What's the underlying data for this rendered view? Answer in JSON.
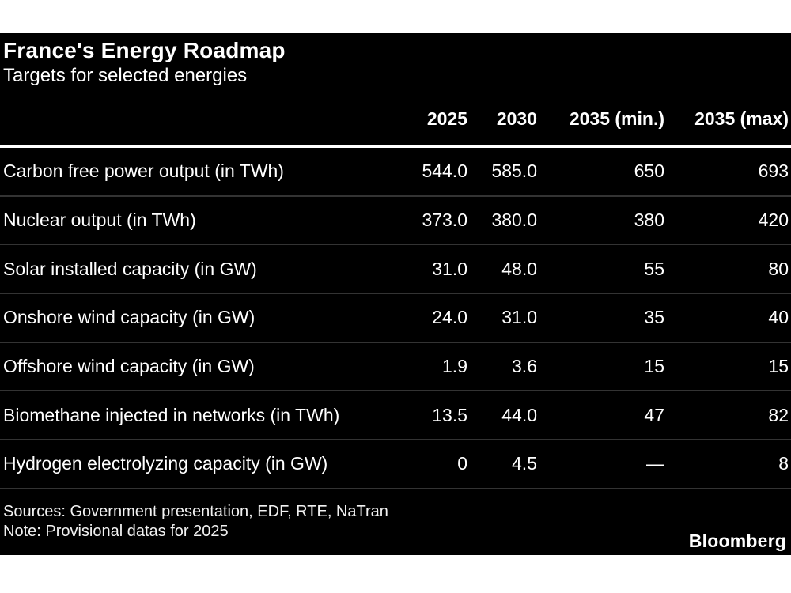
{
  "header": {
    "title": "France's Energy Roadmap",
    "subtitle": "Targets for selected energies"
  },
  "table": {
    "columns": [
      "2025",
      "2030",
      "2035 (min.)",
      "2035 (max)"
    ],
    "rows": [
      {
        "label": "Carbon free power output (in TWh)",
        "values": [
          "544.0",
          "585.0",
          "650",
          "693"
        ]
      },
      {
        "label": "Nuclear output (in TWh)",
        "values": [
          "373.0",
          "380.0",
          "380",
          "420"
        ]
      },
      {
        "label": "Solar installed capacity (in GW)",
        "values": [
          "31.0",
          "48.0",
          "55",
          "80"
        ]
      },
      {
        "label": "Onshore wind capacity (in GW)",
        "values": [
          "24.0",
          "31.0",
          "35",
          "40"
        ]
      },
      {
        "label": "Offshore wind capacity (in GW)",
        "values": [
          "1.9",
          "3.6",
          "15",
          "15"
        ]
      },
      {
        "label": "Biomethane injected in networks (in TWh)",
        "values": [
          "13.5",
          "44.0",
          "47",
          "82"
        ]
      },
      {
        "label": "Hydrogen electrolyzing capacity (in GW)",
        "values": [
          "0",
          "4.5",
          "—",
          "8"
        ]
      }
    ]
  },
  "footer": {
    "sources": "Sources: Government presentation, EDF, RTE, NaTran",
    "note": "Note: Provisional datas for 2025",
    "brand": "Bloomberg"
  },
  "colors": {
    "panel_background": "#000000",
    "text": "#ffffff",
    "row_separator": "#333333",
    "header_rule": "#ffffff",
    "page_background": "#ffffff"
  },
  "chart_data": {
    "type": "table",
    "title": "France's Energy Roadmap",
    "subtitle": "Targets for selected energies",
    "columns": [
      "2025",
      "2030",
      "2035 (min.)",
      "2035 (max)"
    ],
    "series": [
      {
        "name": "Carbon free power output (in TWh)",
        "values": [
          544.0,
          585.0,
          650,
          693
        ]
      },
      {
        "name": "Nuclear output (in TWh)",
        "values": [
          373.0,
          380.0,
          380,
          420
        ]
      },
      {
        "name": "Solar installed capacity (in GW)",
        "values": [
          31.0,
          48.0,
          55,
          80
        ]
      },
      {
        "name": "Onshore wind capacity (in GW)",
        "values": [
          24.0,
          31.0,
          35,
          40
        ]
      },
      {
        "name": "Offshore wind capacity (in GW)",
        "values": [
          1.9,
          3.6,
          15,
          15
        ]
      },
      {
        "name": "Biomethane injected in networks (in TWh)",
        "values": [
          13.5,
          44.0,
          47,
          82
        ]
      },
      {
        "name": "Hydrogen electrolyzing capacity (in GW)",
        "values": [
          0,
          4.5,
          null,
          8
        ]
      }
    ],
    "annotations": [
      "Sources: Government presentation, EDF, RTE, NaTran",
      "Note: Provisional datas for 2025"
    ]
  }
}
